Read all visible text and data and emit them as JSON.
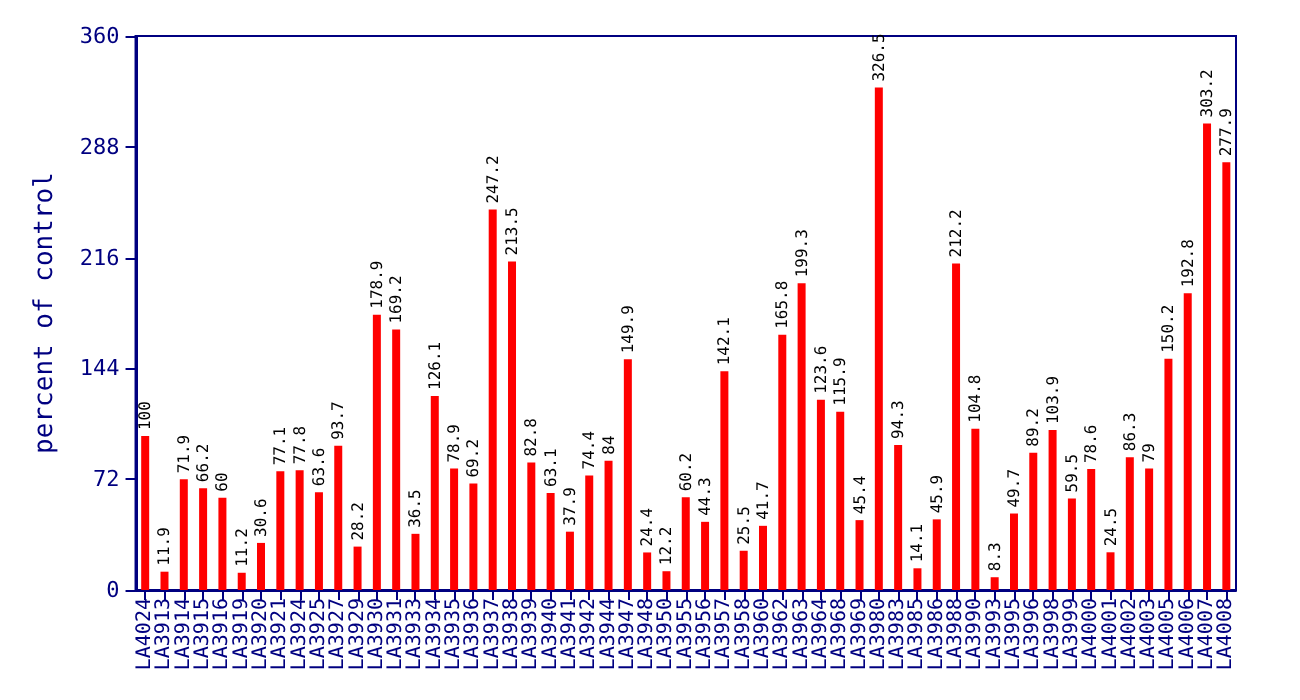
{
  "chart_data": {
    "type": "bar",
    "ylabel": "percent of control",
    "categories": [
      "LA4024",
      "LA3913",
      "LA3914",
      "LA3915",
      "LA3916",
      "LA3919",
      "LA3920",
      "LA3921",
      "LA3924",
      "LA3925",
      "LA3927",
      "LA3929",
      "LA3930",
      "LA3931",
      "LA3933",
      "LA3934",
      "LA3935",
      "LA3936",
      "LA3937",
      "LA3938",
      "LA3939",
      "LA3940",
      "LA3941",
      "LA3942",
      "LA3944",
      "LA3947",
      "LA3948",
      "LA3950",
      "LA3955",
      "LA3956",
      "LA3957",
      "LA3958",
      "LA3960",
      "LA3962",
      "LA3963",
      "LA3964",
      "LA3968",
      "LA3969",
      "LA3980",
      "LA3983",
      "LA3985",
      "LA3986",
      "LA3988",
      "LA3990",
      "LA3993",
      "LA3995",
      "LA3996",
      "LA3998",
      "LA3999",
      "LA4000",
      "LA4001",
      "LA4002",
      "LA4003",
      "LA4005",
      "LA4006",
      "LA4007",
      "LA4008"
    ],
    "values": [
      100,
      11.9,
      71.9,
      66.2,
      60,
      11.2,
      30.6,
      77.1,
      77.8,
      63.6,
      93.7,
      28.2,
      178.9,
      169.2,
      36.5,
      126.1,
      78.9,
      69.2,
      247.2,
      213.5,
      82.8,
      63.1,
      37.9,
      74.4,
      84,
      149.9,
      24.4,
      12.2,
      60.2,
      44.3,
      142.1,
      25.5,
      41.7,
      165.8,
      199.3,
      123.6,
      115.9,
      45.4,
      326.5,
      94.3,
      14.1,
      45.9,
      212.2,
      104.8,
      8.3,
      49.7,
      89.2,
      103.9,
      59.5,
      78.6,
      24.5,
      86.3,
      79,
      150.2,
      192.8,
      303.2,
      277.9
    ],
    "color": "#ff0000",
    "ylim": [
      0,
      360
    ],
    "yticks": [
      0,
      72,
      144,
      216,
      288,
      360
    ],
    "data_labels": true
  }
}
